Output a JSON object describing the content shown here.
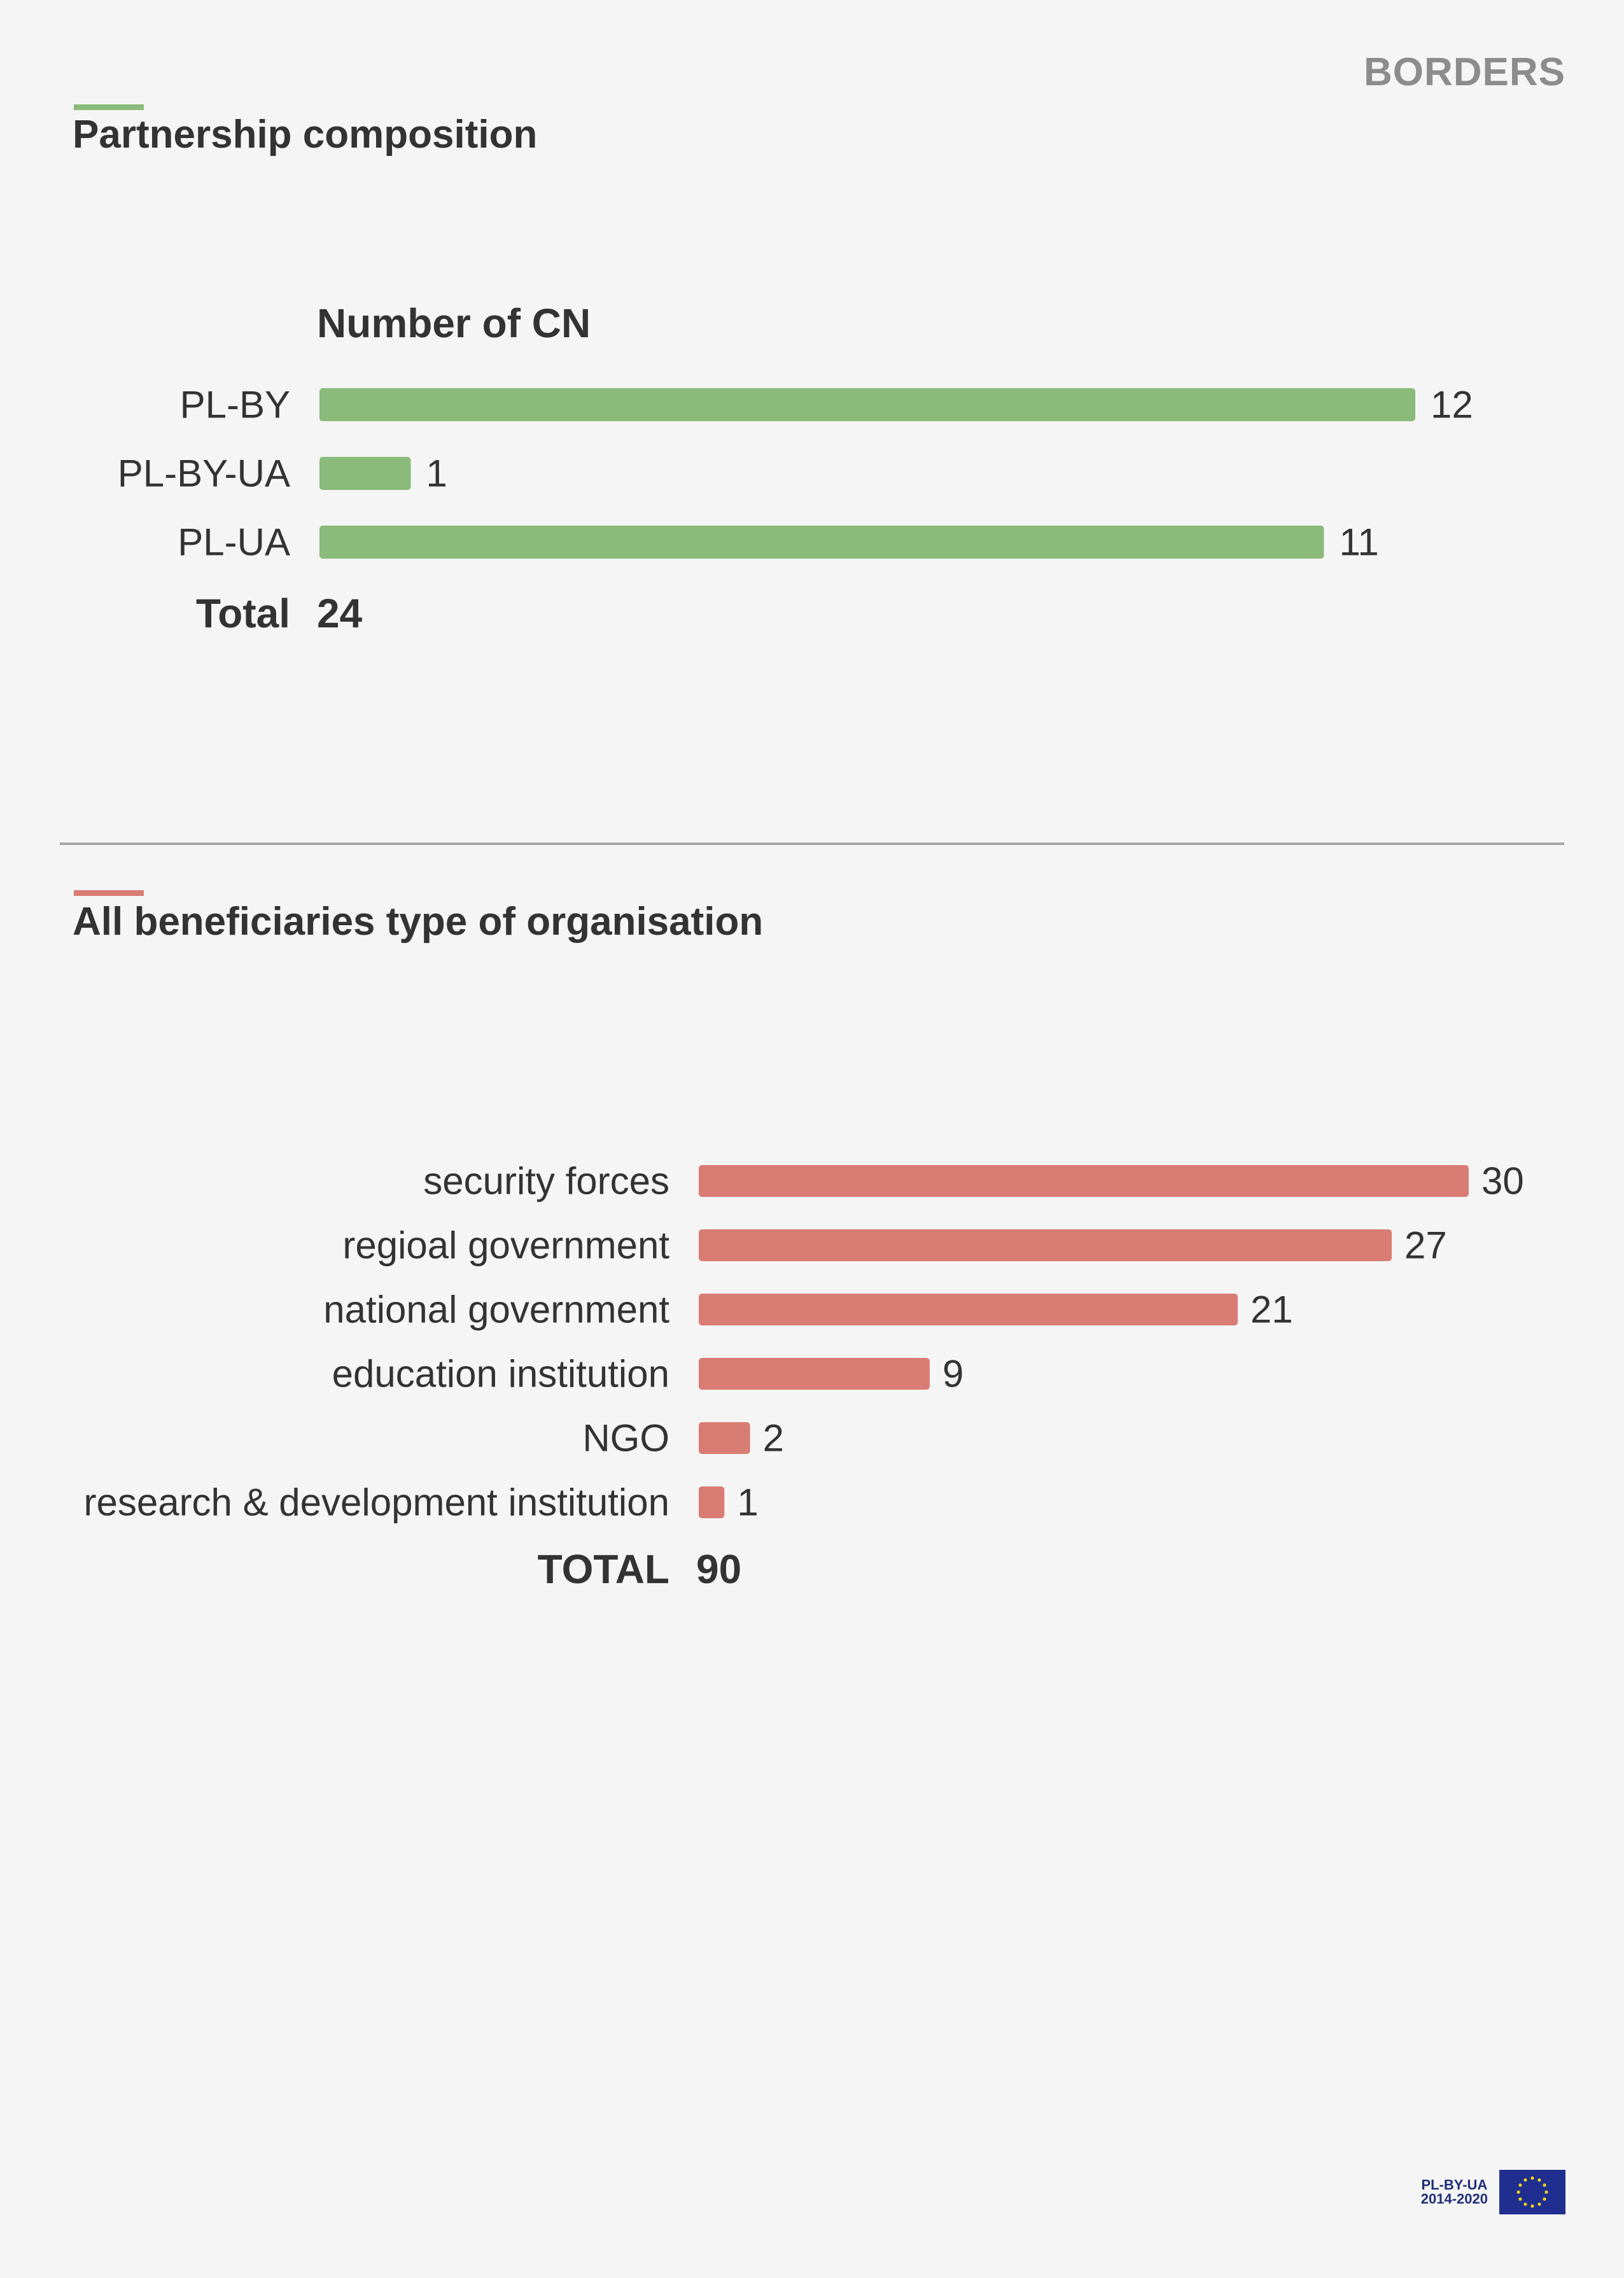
{
  "section_tag": "BORDERS",
  "colors": {
    "accent_green": "#8bbb7a",
    "accent_red": "#d97c73",
    "bar_green": "#8bbb7a",
    "bar_red": "#d97c73",
    "divider": "#a6a6a6",
    "eu_blue": "#1f2e8f",
    "eu_star": "#f2d21e"
  },
  "sections": {
    "partnership": {
      "heading": "Partnership composition"
    },
    "beneficiaries": {
      "heading": "All beneficiaries type of organisation"
    }
  },
  "footer": {
    "program": "PL-BY-UA",
    "years": "2014-2020",
    "logo_icon": "eu-flag-icon"
  },
  "chart_data": [
    {
      "type": "bar",
      "orientation": "horizontal",
      "title": "Number of CN",
      "categories": [
        "PL-BY",
        "PL-BY-UA",
        "PL-UA"
      ],
      "values": [
        12,
        1,
        11
      ],
      "total_label": "Total",
      "total_value": "24",
      "grid": false,
      "data_labels": true
    },
    {
      "type": "bar",
      "orientation": "horizontal",
      "title": "",
      "categories": [
        "security forces",
        "regioal government",
        "national government",
        "education institution",
        "NGO",
        "research & development institution"
      ],
      "values": [
        30,
        27,
        21,
        9,
        2,
        1
      ],
      "total_label": "TOTAL",
      "total_value": "90",
      "grid": false,
      "data_labels": true
    }
  ]
}
